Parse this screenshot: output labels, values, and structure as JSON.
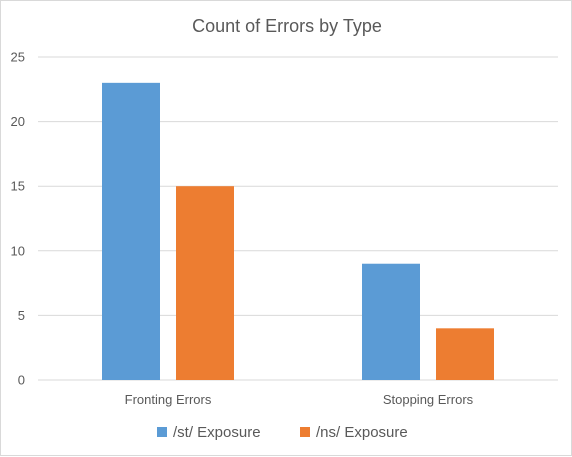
{
  "chart_data": {
    "type": "bar",
    "title": "Count of Errors by Type",
    "xlabel": "",
    "ylabel": "",
    "categories": [
      "Fronting Errors",
      "Stopping Errors"
    ],
    "series": [
      {
        "name": "/st/ Exposure",
        "values": [
          23,
          9
        ],
        "color": "#5b9bd5"
      },
      {
        "name": "/ns/ Exposure",
        "values": [
          15,
          4
        ],
        "color": "#ed7d31"
      }
    ],
    "ylim": [
      0,
      25
    ],
    "yticks": [
      0,
      5,
      10,
      15,
      20,
      25
    ],
    "grid": true,
    "legend_position": "bottom"
  }
}
